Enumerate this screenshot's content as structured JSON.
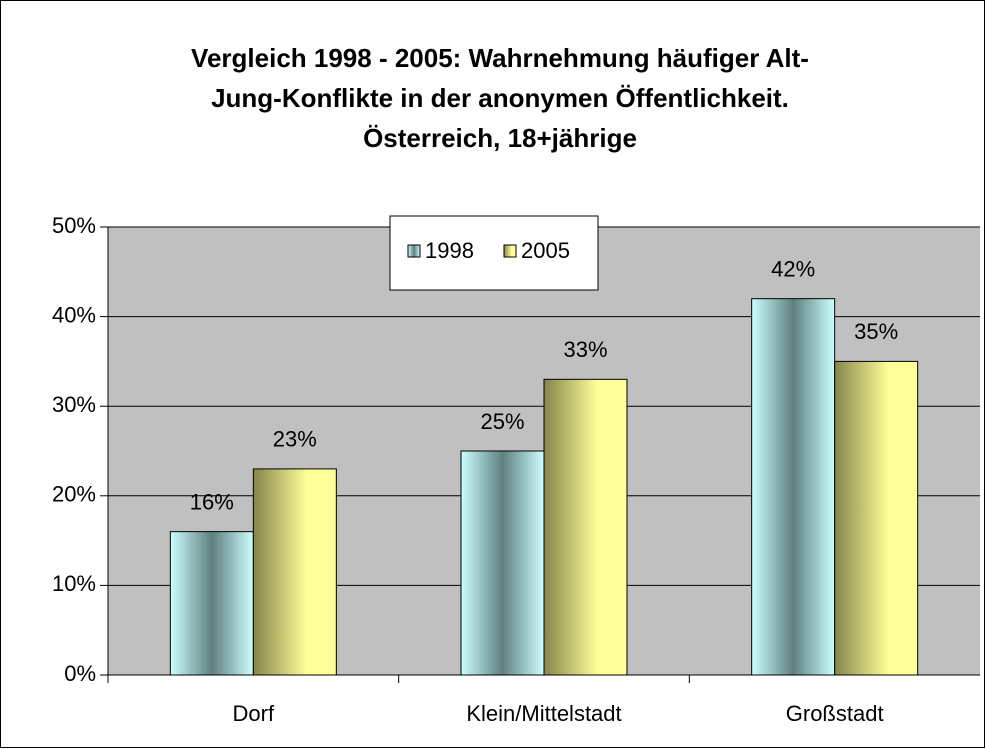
{
  "chart_data": {
    "type": "bar",
    "title": [
      "Vergleich 1998 - 2005: Wahrnehmung häufiger Alt-",
      "Jung-Konflikte in der anonymen Öffentlichkeit.",
      "Österreich, 18+jährige"
    ],
    "categories": [
      "Dorf",
      "Klein/Mittelstadt",
      "Großstadt"
    ],
    "series": [
      {
        "name": "1998",
        "color": "#ccffff",
        "values": [
          16,
          25,
          42
        ],
        "value_labels": [
          "16%",
          "25%",
          "42%"
        ]
      },
      {
        "name": "2005",
        "color": "#ffff99",
        "values": [
          23,
          33,
          35
        ],
        "value_labels": [
          "23%",
          "33%",
          "35%"
        ]
      }
    ],
    "ylim": [
      0,
      50
    ],
    "yticks": [
      {
        "value": 0,
        "label": "0%"
      },
      {
        "value": 10,
        "label": "10%"
      },
      {
        "value": 20,
        "label": "20%"
      },
      {
        "value": 30,
        "label": "30%"
      },
      {
        "value": 40,
        "label": "40%"
      },
      {
        "value": 50,
        "label": "50%"
      }
    ],
    "grid": true,
    "legend": "top"
  }
}
